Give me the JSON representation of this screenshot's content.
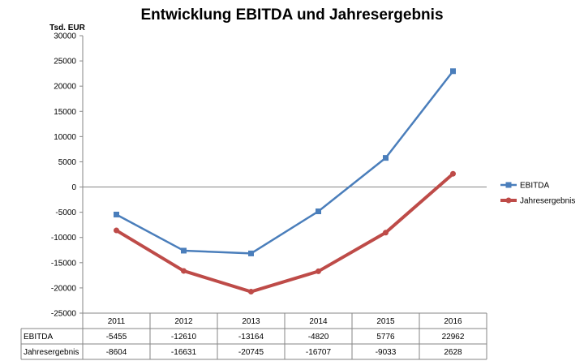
{
  "chart_data": {
    "type": "line",
    "title": "Entwicklung EBITDA und Jahresergebnis",
    "ylabel": "Tsd. EUR",
    "xlabel": "",
    "ylim": [
      -25000,
      30000
    ],
    "ytick_step": 5000,
    "grid": false,
    "legend_position": "right",
    "categories": [
      "2011",
      "2012",
      "2013",
      "2014",
      "2015",
      "2016"
    ],
    "series": [
      {
        "name": "EBITDA",
        "values": [
          -5455,
          -12610,
          -13164,
          -4820,
          5776,
          22962
        ],
        "color": "#4a7ebb",
        "marker": "square"
      },
      {
        "name": "Jahresergebnis",
        "values": [
          -8604,
          -16631,
          -20745,
          -16707,
          -9033,
          2628
        ],
        "color": "#be4b48",
        "marker": "circle"
      }
    ],
    "data_table": true
  }
}
